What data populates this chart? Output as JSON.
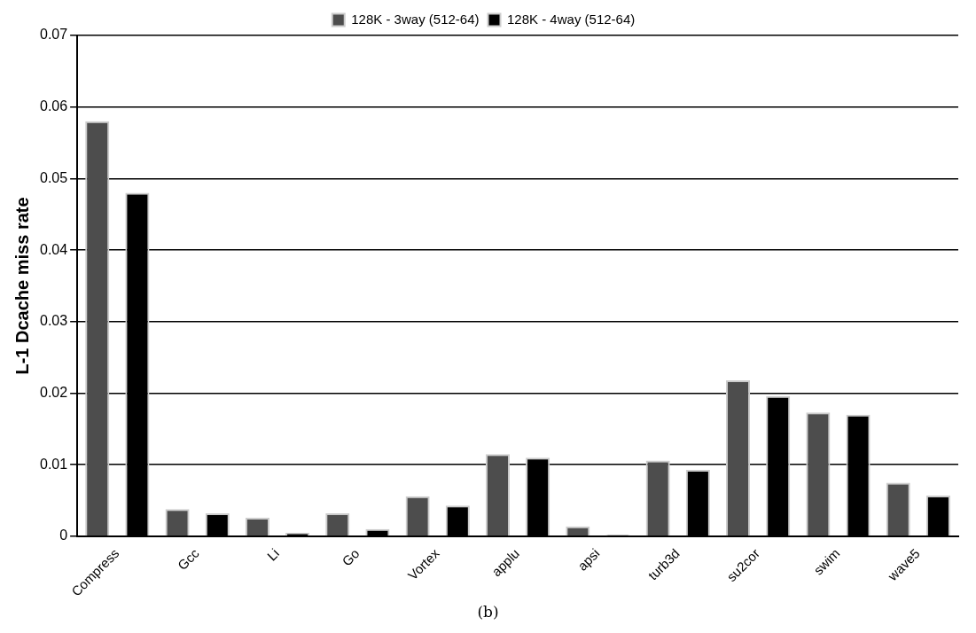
{
  "chart_data": {
    "type": "bar",
    "ylabel": "L-1 Dcache miss rate",
    "categories": [
      "Compress",
      "Gcc",
      "Li",
      "Go",
      "Vortex",
      "applu",
      "apsi",
      "turb3d",
      "su2cor",
      "swim",
      "wave5"
    ],
    "series": [
      {
        "name": "128K - 3way (512-64)",
        "color": "#4d4d4d",
        "values": [
          0.058,
          0.0038,
          0.0026,
          0.0032,
          0.0056,
          0.0115,
          0.0014,
          0.0106,
          0.0218,
          0.0173,
          0.0075
        ]
      },
      {
        "name": "128K - 4way (512-64)",
        "color": "#000000",
        "values": [
          0.048,
          0.0032,
          0.0005,
          0.001,
          0.0043,
          0.011,
          0.0002,
          0.0093,
          0.0196,
          0.017,
          0.0057
        ]
      }
    ],
    "ylim": [
      0,
      0.07
    ],
    "yticks": [
      0,
      0.01,
      0.02,
      0.03,
      0.04,
      0.05,
      0.06,
      0.07
    ],
    "grid": "y",
    "legend": "top",
    "annotations": [
      "(b)"
    ]
  }
}
